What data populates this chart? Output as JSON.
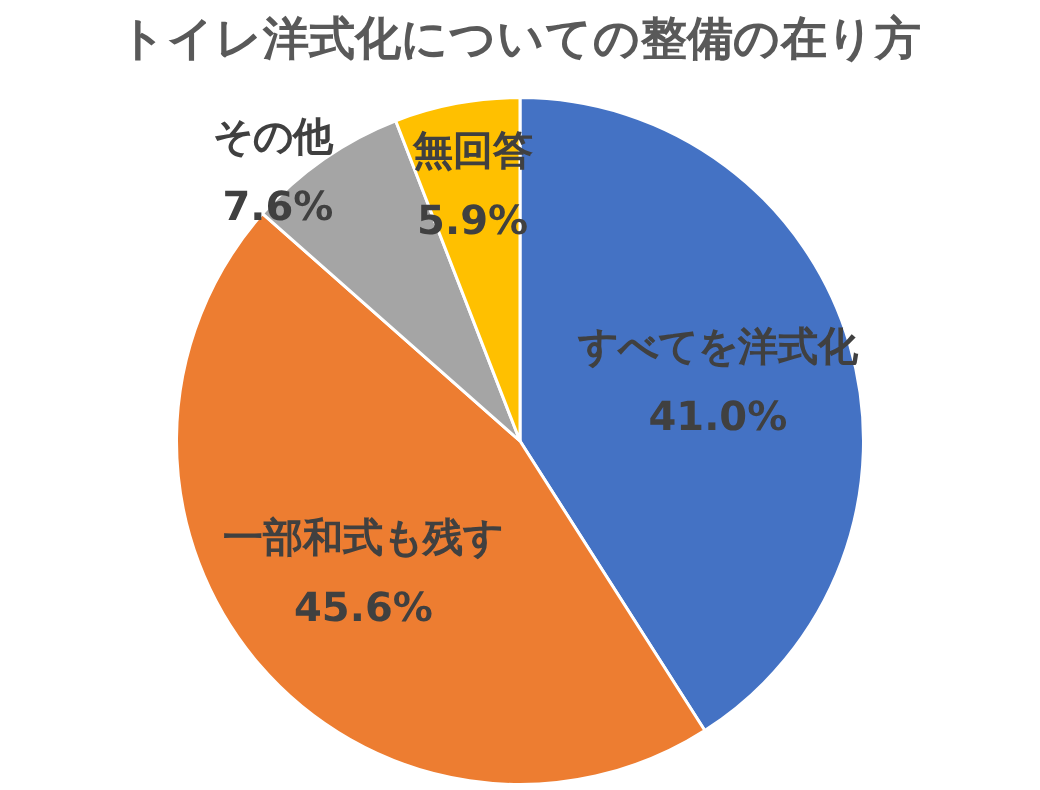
{
  "chart_data": {
    "type": "pie",
    "title": "トイレ洋式化についての整備の在り方",
    "categories": [
      "すべてを洋式化",
      "一部和式も残す",
      "その他",
      "無回答"
    ],
    "values": [
      41.0,
      45.6,
      7.6,
      5.9
    ],
    "colors": [
      "#4472c4",
      "#ed7d31",
      "#a5a5a5",
      "#ffc000"
    ],
    "value_labels": [
      "41.0%",
      "45.6%",
      "7.6%",
      "5.9%"
    ],
    "legend": false
  }
}
